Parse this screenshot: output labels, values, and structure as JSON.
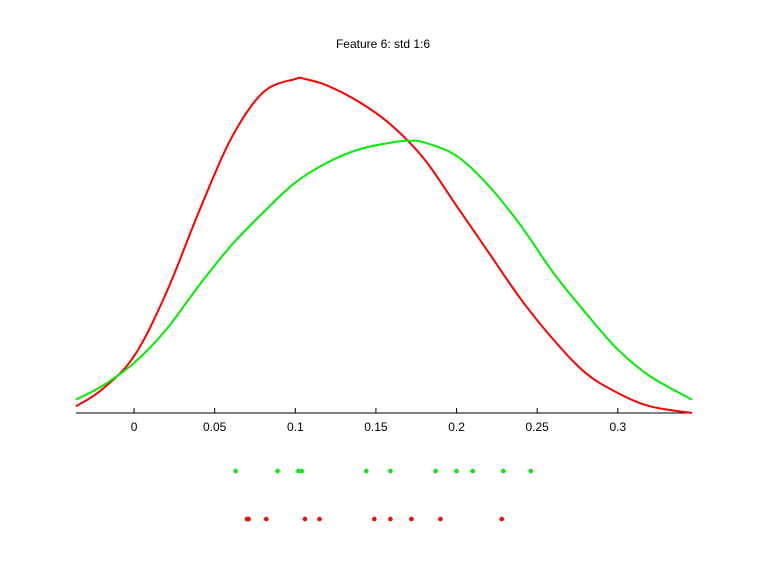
{
  "chart_data": {
    "type": "line",
    "title": "Feature 6: std 1:6",
    "xlabel": "",
    "ylabel": "",
    "xlim": [
      -0.036,
      0.346
    ],
    "ylim": [
      0,
      1
    ],
    "x_ticks": [
      0,
      0.05,
      0.1,
      0.15,
      0.2,
      0.25,
      0.3
    ],
    "x_tick_labels": [
      "0",
      "0.05",
      "0.1",
      "0.15",
      "0.2",
      "0.25",
      "0.3"
    ],
    "grid": false,
    "legend": false,
    "series": [
      {
        "color": "#ff0000",
        "x": [
          -0.036,
          -0.02,
          0,
          0.02,
          0.04,
          0.06,
          0.08,
          0.1,
          0.106,
          0.12,
          0.14,
          0.16,
          0.18,
          0.2,
          0.22,
          0.24,
          0.26,
          0.28,
          0.3,
          0.32,
          0.346
        ],
        "y": [
          0.02,
          0.07,
          0.17,
          0.36,
          0.6,
          0.82,
          0.96,
          1.0,
          1.0,
          0.98,
          0.93,
          0.86,
          0.76,
          0.62,
          0.48,
          0.34,
          0.22,
          0.12,
          0.06,
          0.02,
          0.0
        ],
        "points": [
          0.07,
          0.071,
          0.082,
          0.106,
          0.115,
          0.149,
          0.159,
          0.172,
          0.19,
          0.228
        ]
      },
      {
        "color": "#00ee00",
        "x": [
          -0.036,
          -0.02,
          0,
          0.02,
          0.04,
          0.06,
          0.08,
          0.1,
          0.12,
          0.14,
          0.16,
          0.17,
          0.18,
          0.2,
          0.22,
          0.24,
          0.26,
          0.28,
          0.3,
          0.32,
          0.346
        ],
        "y": [
          0.04,
          0.08,
          0.15,
          0.25,
          0.38,
          0.5,
          0.6,
          0.69,
          0.75,
          0.79,
          0.81,
          0.815,
          0.81,
          0.77,
          0.68,
          0.56,
          0.42,
          0.3,
          0.19,
          0.11,
          0.04
        ],
        "points": [
          0.063,
          0.089,
          0.102,
          0.104,
          0.144,
          0.159,
          0.187,
          0.2,
          0.21,
          0.229,
          0.246
        ]
      }
    ]
  }
}
